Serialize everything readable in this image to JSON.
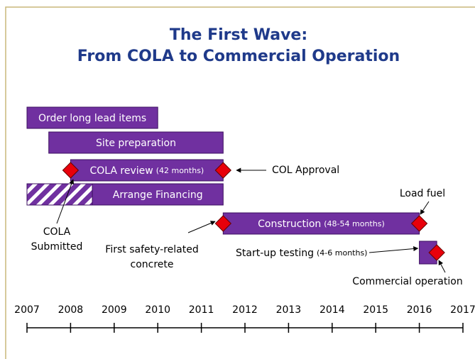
{
  "chart_data": {
    "type": "timeline",
    "title": [
      "The First Wave:",
      "From COLA to Commercial Operation"
    ],
    "xlim": [
      2007,
      2017
    ],
    "xticks": [
      2007,
      2008,
      2009,
      2010,
      2011,
      2012,
      2013,
      2014,
      2015,
      2016,
      2017
    ],
    "bar_color": "#7030a0",
    "milestone_color": "#e8000b",
    "tasks": [
      {
        "name": "Order long lead items",
        "start": 2007,
        "end": 2010
      },
      {
        "name": "Site preparation",
        "start": 2007.5,
        "end": 2011.5
      },
      {
        "name": "COLA review",
        "note": "(42 months)",
        "start": 2008,
        "end": 2011.5
      },
      {
        "name": "Arrange Financing",
        "start": 2007,
        "hatched_end": 2008.5,
        "end": 2011.5
      },
      {
        "name": "Construction",
        "note": "(48-54 months)",
        "start": 2011.5,
        "end": 2016
      },
      {
        "name": "Start-up testing",
        "note": "(4-6 months)",
        "start": 2016,
        "end": 2016.4
      }
    ],
    "milestones": [
      {
        "label": [
          "COLA",
          "Submitted"
        ],
        "date": 2008
      },
      {
        "label": [
          "COL Approval"
        ],
        "date": 2011.5
      },
      {
        "label": [
          "First safety-related",
          "concrete"
        ],
        "date": 2011.5
      },
      {
        "label": [
          "Load fuel"
        ],
        "date": 2016
      },
      {
        "label": [
          "Commercial operation"
        ],
        "date": 2016.4
      }
    ]
  }
}
